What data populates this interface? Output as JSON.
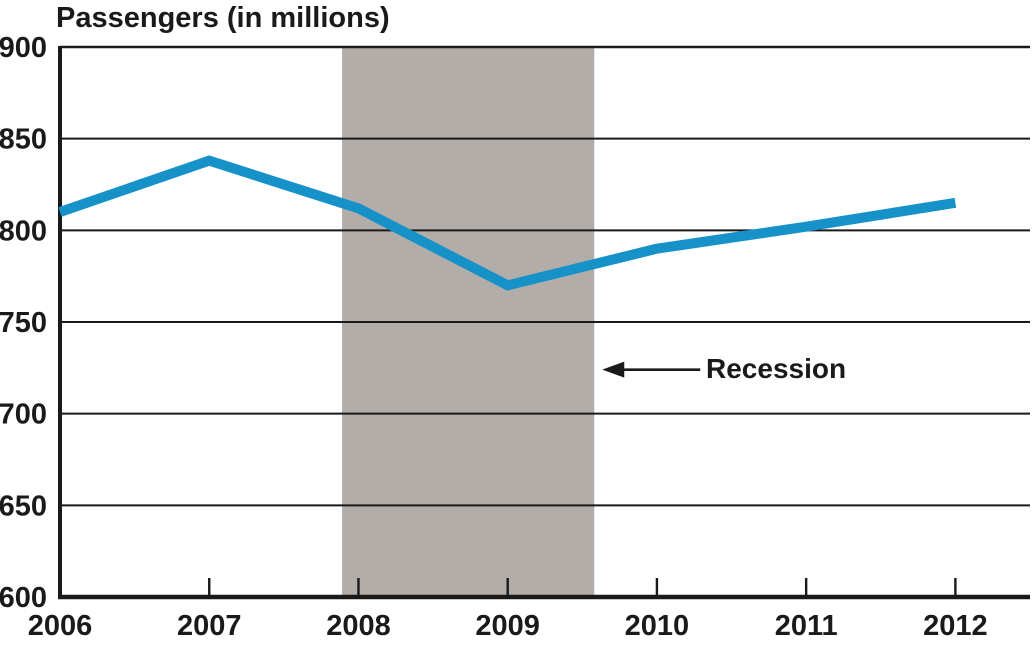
{
  "colors": {
    "ink": "#1a1a1a",
    "background": "#ffffff",
    "line": "#1792c8",
    "band": "#b3adaa"
  },
  "chart_data": {
    "type": "line",
    "title": "Passengers (in millions)",
    "xlabel": "",
    "ylabel": "Passengers (in millions)",
    "x": [
      2006,
      2007,
      2008,
      2009,
      2010,
      2011,
      2012
    ],
    "series": [
      {
        "name": "Passengers (in millions)",
        "color": "#1792c8",
        "values": [
          810,
          838,
          812,
          770,
          790,
          802,
          815
        ]
      }
    ],
    "ylim": [
      600,
      900
    ],
    "yticks": [
      900,
      850,
      800,
      750,
      700,
      650,
      600
    ],
    "xlim": [
      2006,
      2012.5
    ],
    "grid": "horizontal",
    "legend": "none",
    "band": {
      "label": "Recession",
      "x_start": 2007.89,
      "x_end": 2009.58,
      "color": "#b3adaa"
    },
    "annotation": {
      "text": "Recession",
      "arrow_direction": "left",
      "arrow_points_to": "recession band right edge",
      "y_value": 724
    }
  }
}
